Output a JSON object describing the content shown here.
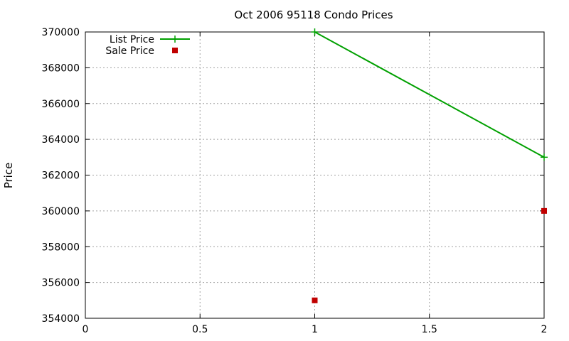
{
  "chart_data": {
    "type": "line",
    "title": "Oct 2006 95118 Condo Prices",
    "xlabel": "",
    "ylabel": "Price",
    "xlim": [
      0,
      2
    ],
    "ylim": [
      354000,
      370000
    ],
    "xticks": [
      0,
      0.5,
      1,
      1.5,
      2
    ],
    "xtick_labels": [
      "0",
      "0.5",
      "1",
      "1.5",
      "2"
    ],
    "yticks": [
      354000,
      356000,
      358000,
      360000,
      362000,
      364000,
      366000,
      368000,
      370000
    ],
    "ytick_labels": [
      "354000",
      "356000",
      "358000",
      "360000",
      "362000",
      "364000",
      "366000",
      "368000",
      "370000"
    ],
    "grid": true,
    "legend_position": "top-left",
    "series": [
      {
        "name": "List Price",
        "style": "linespoints",
        "marker": "plus",
        "color": "#00a000",
        "x": [
          1,
          2
        ],
        "y": [
          370000,
          363000
        ]
      },
      {
        "name": "Sale Price",
        "style": "points",
        "marker": "square",
        "color": "#c00000",
        "x": [
          1,
          2
        ],
        "y": [
          355000,
          360000
        ]
      }
    ]
  }
}
